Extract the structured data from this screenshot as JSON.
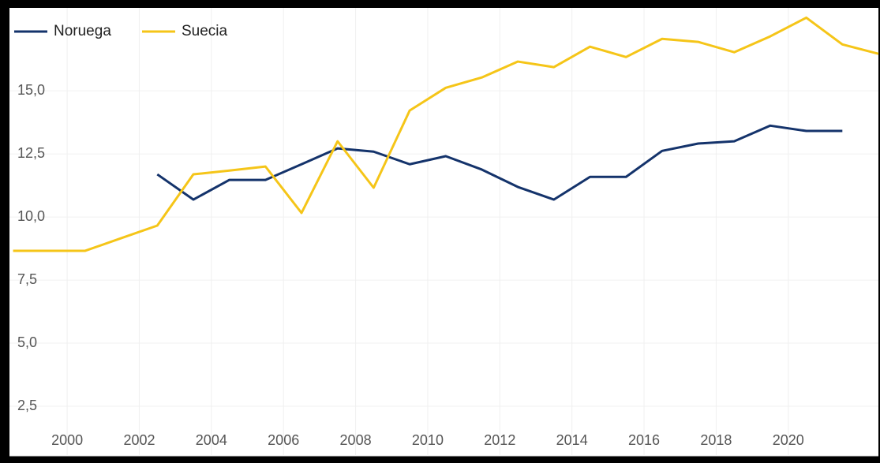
{
  "chart_data": {
    "type": "line",
    "x": [
      1998.5,
      1999.5,
      2000.5,
      2001.5,
      2002.5,
      2003.5,
      2004.5,
      2005.5,
      2006.5,
      2007.5,
      2008.5,
      2009.5,
      2010.5,
      2011.5,
      2012.5,
      2013.5,
      2014.5,
      2015.5,
      2016.5,
      2017.5,
      2018.5,
      2019.5,
      2020.5,
      2021.5,
      2022.5
    ],
    "series": [
      {
        "name": "Noruega",
        "color": "#14336b",
        "values": [
          null,
          null,
          null,
          null,
          11.69,
          10.69,
          11.47,
          11.47,
          12.09,
          12.72,
          12.59,
          12.09,
          12.41,
          11.88,
          11.19,
          10.69,
          11.59,
          11.59,
          12.62,
          12.91,
          13.0,
          13.62,
          13.41,
          13.41,
          null
        ]
      },
      {
        "name": "Suecia",
        "color": "#f5c518",
        "values": [
          8.66,
          8.66,
          8.66,
          9.16,
          9.66,
          11.69,
          11.84,
          12.0,
          10.16,
          13.0,
          11.16,
          14.22,
          15.12,
          15.53,
          16.16,
          15.94,
          16.75,
          16.34,
          17.06,
          16.94,
          16.53,
          17.16,
          17.9,
          16.84,
          16.47
        ]
      }
    ],
    "xlim": [
      1998.4,
      2022.5
    ],
    "xticks": [
      2000,
      2002,
      2004,
      2006,
      2008,
      2010,
      2012,
      2014,
      2016,
      2018,
      2020
    ],
    "ylim": [
      1.5,
      18.1
    ],
    "yticks": [
      {
        "value": 2.5,
        "label": "2,5"
      },
      {
        "value": 5,
        "label": "5,0"
      },
      {
        "value": 7.5,
        "label": "7,5"
      },
      {
        "value": 10,
        "label": "10,0"
      },
      {
        "value": 12.5,
        "label": "12,5"
      },
      {
        "value": 15,
        "label": "15,0"
      }
    ],
    "grid": true,
    "legend": "top-left"
  }
}
